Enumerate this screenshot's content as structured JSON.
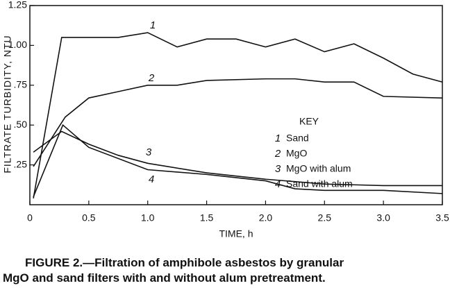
{
  "chart_data": {
    "type": "line",
    "caption": [
      "FIGURE 2.—Filtration of amphibole asbestos by granular",
      "MgO and sand filters with and without alum pretreatment."
    ],
    "xlabel": "TIME, h",
    "ylabel": "FILTRATE TURBIDITY, NTU",
    "legend_title": "KEY",
    "xlim": [
      0,
      3.5
    ],
    "ylim": [
      0,
      1.25
    ],
    "xticks": [
      0,
      0.5,
      {
        "value": 1,
        "label": "1.0"
      },
      1.5,
      {
        "value": 2,
        "label": "2.0"
      },
      2.5,
      {
        "value": 3,
        "label": "3.0"
      },
      3.5
    ],
    "yticks": [
      {
        "value": 0.25,
        "label": ".25"
      },
      {
        "value": 0.5,
        "label": ".50"
      },
      {
        "value": 0.75,
        "label": ".75"
      },
      {
        "value": 1,
        "label": "1.00"
      },
      {
        "value": 1.25,
        "label": "1.25"
      }
    ],
    "series": [
      {
        "label": "1",
        "name": "Sand",
        "color": "#111111",
        "x": [
          0.03,
          0.27,
          0.75,
          1.0,
          1.25,
          1.5,
          1.75,
          2.0,
          2.25,
          2.5,
          2.75,
          3.0,
          3.25,
          3.5
        ],
        "values": [
          0.04,
          1.05,
          1.05,
          1.08,
          0.99,
          1.04,
          1.04,
          0.99,
          1.04,
          0.96,
          1.01,
          0.92,
          0.82,
          0.77
        ]
      },
      {
        "label": "2",
        "name": "MgO",
        "color": "#111111",
        "x": [
          0.03,
          0.3,
          0.5,
          0.75,
          1.0,
          1.25,
          1.5,
          2.0,
          2.25,
          2.5,
          2.75,
          3.0,
          3.5
        ],
        "values": [
          0.24,
          0.55,
          0.67,
          0.71,
          0.75,
          0.75,
          0.78,
          0.79,
          0.79,
          0.77,
          0.77,
          0.68,
          0.67
        ]
      },
      {
        "label": "3",
        "name": "MgO with alum",
        "color": "#111111",
        "x": [
          0.03,
          0.27,
          0.5,
          0.75,
          1.0,
          1.5,
          2.0,
          2.5,
          3.0,
          3.5
        ],
        "values": [
          0.33,
          0.46,
          0.38,
          0.31,
          0.26,
          0.2,
          0.16,
          0.13,
          0.12,
          0.12
        ]
      },
      {
        "label": "4",
        "name": "Sand with alum",
        "color": "#111111",
        "x": [
          0.03,
          0.28,
          0.5,
          1.0,
          1.5,
          2.0,
          2.25,
          2.5,
          3.0,
          3.5
        ],
        "values": [
          0.05,
          0.5,
          0.36,
          0.22,
          0.19,
          0.15,
          0.1,
          0.09,
          0.09,
          0.07
        ]
      }
    ]
  }
}
